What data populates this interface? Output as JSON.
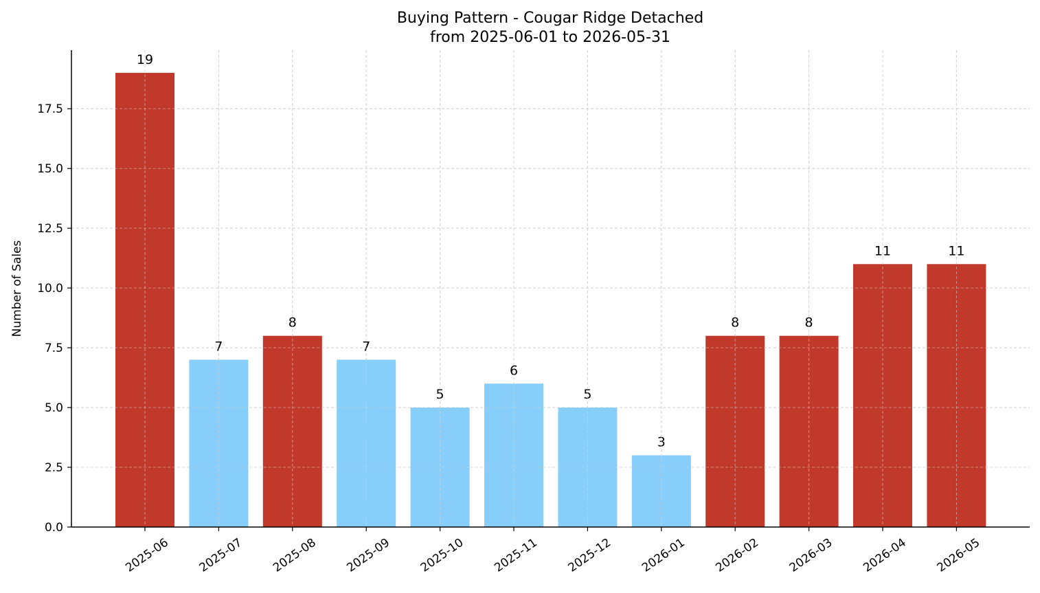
{
  "chart_data": {
    "type": "bar",
    "title": "Buying Pattern - Cougar Ridge Detached",
    "subtitle": "from 2025-06-01 to 2026-05-31",
    "xlabel": "",
    "ylabel": "Number of Sales",
    "categories": [
      "2025-06",
      "2025-07",
      "2025-08",
      "2025-09",
      "2025-10",
      "2025-11",
      "2025-12",
      "2026-01",
      "2026-02",
      "2026-03",
      "2026-04",
      "2026-05"
    ],
    "values": [
      19,
      7,
      8,
      7,
      5,
      6,
      5,
      3,
      8,
      8,
      11,
      11
    ],
    "value_labels": [
      "19",
      "7",
      "8",
      "7",
      "5",
      "6",
      "5",
      "3",
      "8",
      "8",
      "11",
      "11"
    ],
    "bar_colors": [
      "#c0392b",
      "#87cefa",
      "#c0392b",
      "#87cefa",
      "#87cefa",
      "#87cefa",
      "#87cefa",
      "#87cefa",
      "#c0392b",
      "#c0392b",
      "#c0392b",
      "#c0392b"
    ],
    "ylim": [
      0,
      19.95
    ],
    "yticks": [
      0.0,
      2.5,
      5.0,
      7.5,
      10.0,
      12.5,
      15.0,
      17.5
    ],
    "ytick_labels": [
      "0.0",
      "2.5",
      "5.0",
      "7.5",
      "10.0",
      "12.5",
      "15.0",
      "17.5"
    ],
    "grid": true,
    "legend": "none"
  }
}
